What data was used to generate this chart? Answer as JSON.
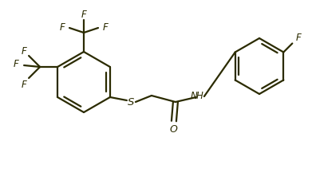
{
  "background_color": "#ffffff",
  "line_color": "#2b2b00",
  "line_width": 1.6,
  "font_size": 8.5,
  "figsize": [
    3.91,
    2.32
  ],
  "dpi": 100,
  "xlim": [
    0,
    391
  ],
  "ylim": [
    0,
    232
  ]
}
